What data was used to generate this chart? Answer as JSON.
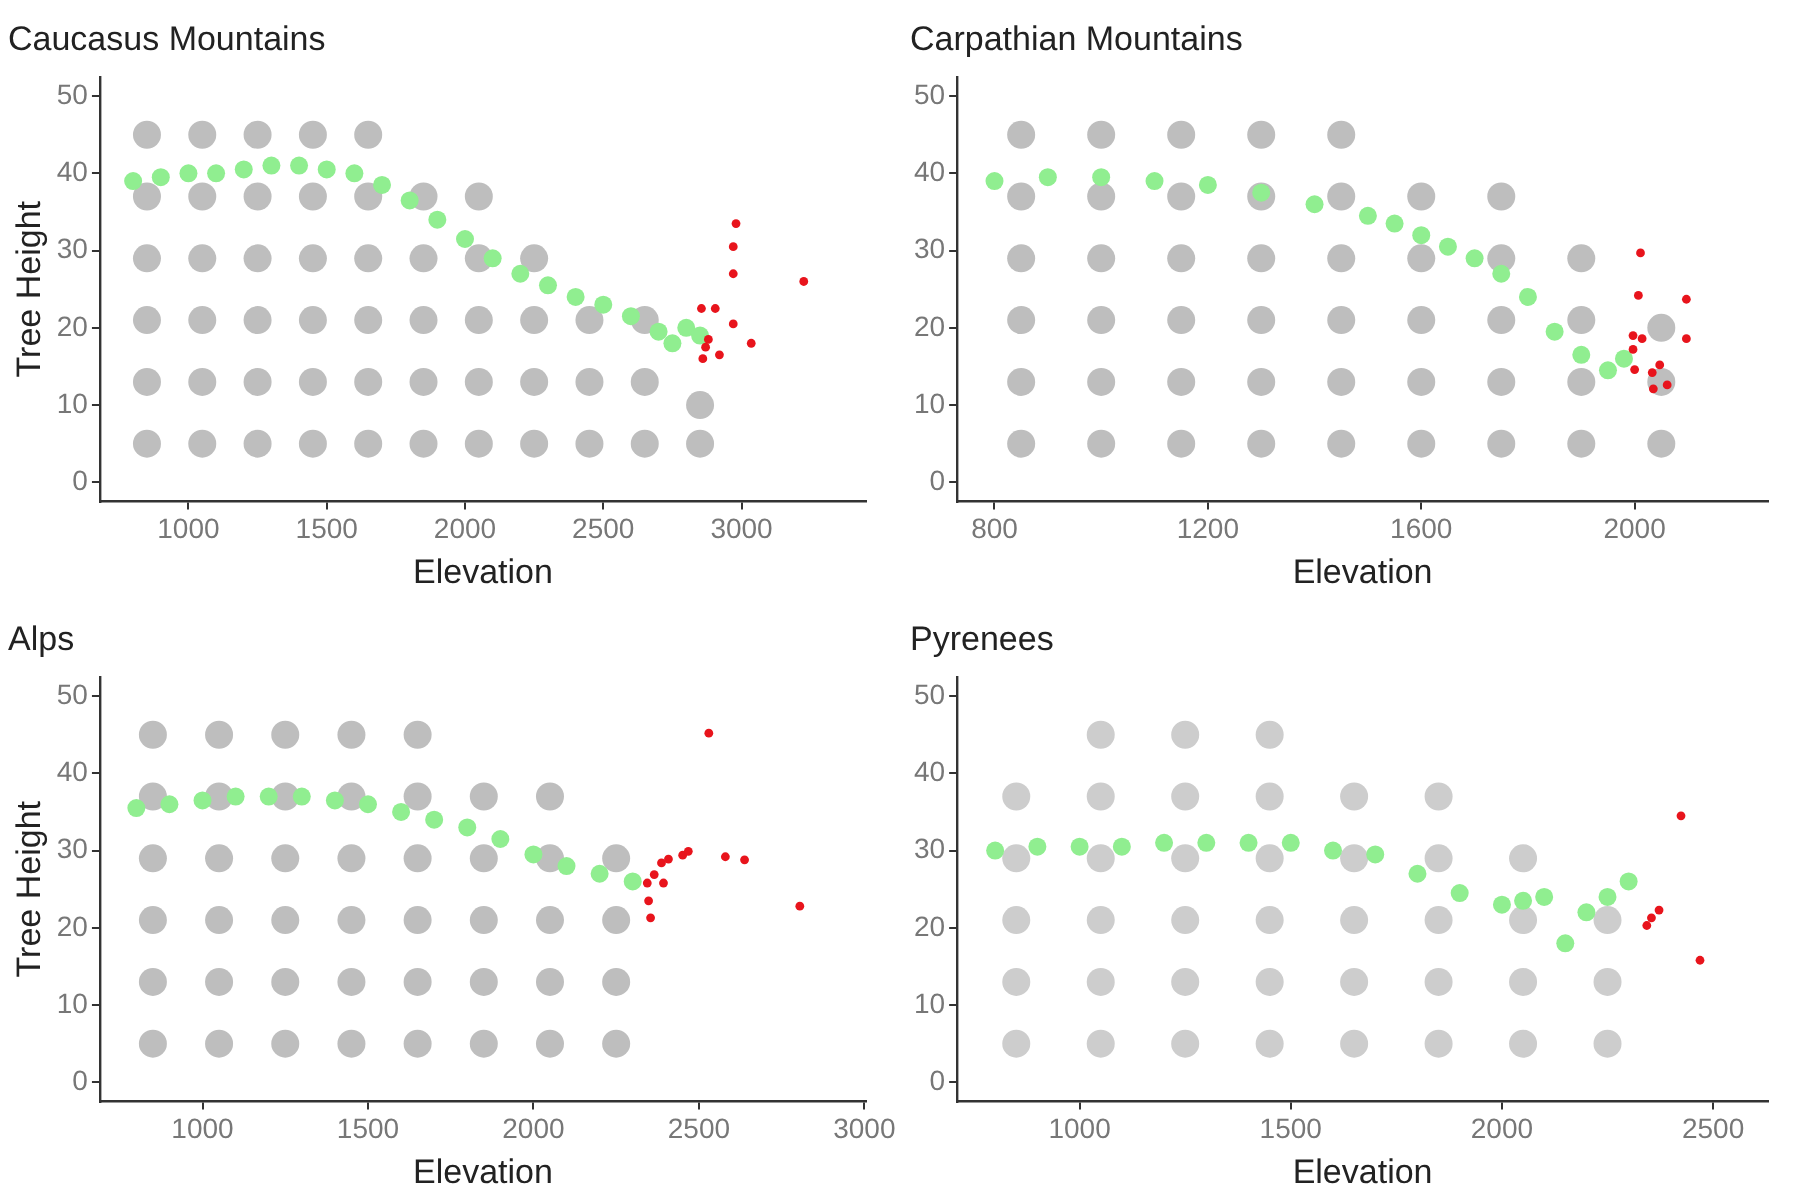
{
  "chart_data": [
    {
      "type": "scatter",
      "title": "Caucasus Mountains",
      "xlabel": "Elevation",
      "ylabel": "Tree Height",
      "xlim": [
        680,
        3450
      ],
      "xticks": [
        1000,
        1500,
        2000,
        2500,
        3000
      ],
      "ylim": [
        -2.5,
        52.5
      ],
      "yticks": [
        0,
        10,
        20,
        30,
        40,
        50
      ],
      "marker": "circle",
      "series": [
        {
          "color": "#bebebe",
          "x": [
            850,
            850,
            850,
            850,
            850,
            850,
            1050,
            1050,
            1050,
            1050,
            1050,
            1050,
            1250,
            1250,
            1250,
            1250,
            1250,
            1250,
            1450,
            1450,
            1450,
            1450,
            1450,
            1450,
            1650,
            1650,
            1650,
            1650,
            1650,
            1650,
            1850,
            1850,
            1850,
            1850,
            1850,
            2050,
            2050,
            2050,
            2050,
            2050,
            2250,
            2250,
            2250,
            2250,
            2450,
            2450,
            2450,
            2650,
            2650,
            2650,
            2850,
            2850
          ],
          "values": [
            5,
            13,
            21,
            29,
            37,
            45,
            5,
            13,
            21,
            29,
            37,
            45,
            5,
            13,
            21,
            29,
            37,
            45,
            5,
            13,
            21,
            29,
            37,
            45,
            5,
            13,
            21,
            29,
            37,
            45,
            5,
            13,
            21,
            29,
            37,
            5,
            13,
            21,
            29,
            37,
            5,
            13,
            21,
            29,
            5,
            13,
            21,
            5,
            13,
            21,
            5,
            10
          ]
        },
        {
          "color": "#90ee90",
          "x": [
            800,
            900,
            1000,
            1100,
            1200,
            1300,
            1400,
            1500,
            1600,
            1700,
            1800,
            1900,
            2000,
            2100,
            2200,
            2300,
            2400,
            2500,
            2600,
            2700,
            2750,
            2800,
            2850
          ],
          "values": [
            39,
            39.5,
            40,
            40,
            40.5,
            41,
            41,
            40.5,
            40,
            38.5,
            36.5,
            34,
            31.5,
            29,
            27,
            25.5,
            24,
            23,
            21.5,
            19.5,
            18,
            20,
            19
          ]
        },
        {
          "color": "#e8141c",
          "x": [
            2980,
            2970,
            2970,
            3225,
            2855,
            2905,
            2970,
            3035,
            2880,
            2870,
            2860,
            2920
          ],
          "values": [
            33.5,
            30.5,
            27,
            26,
            22.5,
            22.5,
            20.5,
            18,
            18.5,
            17.5,
            16,
            16.5
          ]
        }
      ]
    },
    {
      "type": "scatter",
      "title": "Carpathian Mountains",
      "xlabel": "Elevation",
      "xlim": [
        730,
        2250
      ],
      "xticks": [
        800,
        1200,
        1600,
        2000
      ],
      "ylim": [
        -2.5,
        52.5
      ],
      "yticks": [
        0,
        10,
        20,
        30,
        40,
        50
      ],
      "marker": "circle",
      "series": [
        {
          "color": "#bebebe",
          "x": [
            850,
            850,
            850,
            850,
            850,
            850,
            1000,
            1000,
            1000,
            1000,
            1000,
            1000,
            1150,
            1150,
            1150,
            1150,
            1150,
            1150,
            1300,
            1300,
            1300,
            1300,
            1300,
            1300,
            1450,
            1450,
            1450,
            1450,
            1450,
            1450,
            1600,
            1600,
            1600,
            1600,
            1600,
            1750,
            1750,
            1750,
            1750,
            1750,
            1900,
            1900,
            1900,
            1900,
            2050,
            2050,
            2050
          ],
          "values": [
            5,
            13,
            21,
            29,
            37,
            45,
            5,
            13,
            21,
            29,
            37,
            45,
            5,
            13,
            21,
            29,
            37,
            45,
            5,
            13,
            21,
            29,
            37,
            45,
            5,
            13,
            21,
            29,
            37,
            45,
            5,
            13,
            21,
            29,
            37,
            5,
            13,
            21,
            29,
            37,
            5,
            13,
            21,
            29,
            5,
            13,
            20
          ]
        },
        {
          "color": "#90ee90",
          "x": [
            800,
            900,
            1000,
            1100,
            1200,
            1300,
            1400,
            1500,
            1550,
            1600,
            1650,
            1700,
            1750,
            1800,
            1850,
            1900,
            1950,
            1980
          ],
          "values": [
            39,
            39.5,
            39.5,
            39,
            38.5,
            37.5,
            36,
            34.5,
            33.5,
            32,
            30.5,
            29,
            27,
            24,
            19.5,
            16.5,
            14.5,
            16
          ]
        },
        {
          "color": "#e8141c",
          "x": [
            2011,
            2007,
            2097,
            1997,
            2014,
            2097,
            1997,
            2000,
            2047,
            2033,
            2061,
            2035
          ],
          "values": [
            29.7,
            24.2,
            23.7,
            19,
            18.6,
            18.6,
            17.2,
            14.6,
            15.2,
            14.2,
            12.6,
            12.1
          ]
        }
      ]
    },
    {
      "type": "scatter",
      "title": "Alps",
      "xlabel": "Elevation",
      "ylabel": "Tree Height",
      "xlim": [
        690,
        3005
      ],
      "xticks": [
        1000,
        1500,
        2000,
        2500,
        3000
      ],
      "ylim": [
        -2.5,
        52.5
      ],
      "yticks": [
        0,
        10,
        20,
        30,
        40,
        50
      ],
      "marker": "circle",
      "series": [
        {
          "color": "#bebebe",
          "x": [
            850,
            850,
            850,
            850,
            850,
            850,
            1050,
            1050,
            1050,
            1050,
            1050,
            1050,
            1250,
            1250,
            1250,
            1250,
            1250,
            1250,
            1450,
            1450,
            1450,
            1450,
            1450,
            1450,
            1650,
            1650,
            1650,
            1650,
            1650,
            1650,
            1850,
            1850,
            1850,
            1850,
            1850,
            2050,
            2050,
            2050,
            2050,
            2050,
            2250,
            2250,
            2250,
            2250
          ],
          "values": [
            5,
            13,
            21,
            29,
            37,
            45,
            5,
            13,
            21,
            29,
            37,
            45,
            5,
            13,
            21,
            29,
            37,
            45,
            5,
            13,
            21,
            29,
            37,
            45,
            5,
            13,
            21,
            29,
            37,
            45,
            5,
            13,
            21,
            29,
            37,
            5,
            13,
            21,
            29,
            37,
            5,
            13,
            21,
            29
          ]
        },
        {
          "color": "#90ee90",
          "x": [
            800,
            900,
            1000,
            1100,
            1200,
            1300,
            1400,
            1500,
            1600,
            1700,
            1800,
            1900,
            2000,
            2100,
            2200,
            2300
          ],
          "values": [
            35.5,
            36,
            36.5,
            37,
            37,
            37,
            36.5,
            36,
            35,
            34,
            33,
            31.5,
            29.5,
            28,
            27,
            26
          ]
        },
        {
          "color": "#e8141c",
          "x": [
            2530,
            2580,
            2638,
            2805,
            2344,
            2348,
            2354,
            2365,
            2387,
            2408,
            2451,
            2468,
            2393
          ],
          "values": [
            45.2,
            29.2,
            28.8,
            22.8,
            25.8,
            23.5,
            21.3,
            26.9,
            28.4,
            28.9,
            29.4,
            29.9,
            25.8
          ]
        }
      ]
    },
    {
      "type": "scatter",
      "title": "Pyrenees",
      "xlabel": "Elevation",
      "xlim": [
        710,
        2630
      ],
      "xticks": [
        1000,
        1500,
        2000,
        2500
      ],
      "ylim": [
        -2.5,
        52.5
      ],
      "yticks": [
        0,
        10,
        20,
        30,
        40,
        50
      ],
      "marker": "circle",
      "series": [
        {
          "color": "#cdcdcd",
          "x": [
            850,
            850,
            850,
            850,
            850,
            1050,
            1050,
            1050,
            1050,
            1050,
            1050,
            1250,
            1250,
            1250,
            1250,
            1250,
            1250,
            1450,
            1450,
            1450,
            1450,
            1450,
            1450,
            1650,
            1650,
            1650,
            1650,
            1650,
            1850,
            1850,
            1850,
            1850,
            1850,
            2050,
            2050,
            2050,
            2050,
            2250,
            2250,
            2250
          ],
          "values": [
            5,
            13,
            21,
            29,
            37,
            5,
            13,
            21,
            29,
            37,
            45,
            5,
            13,
            21,
            29,
            37,
            45,
            5,
            13,
            21,
            29,
            37,
            45,
            5,
            13,
            21,
            29,
            37,
            5,
            13,
            21,
            29,
            37,
            5,
            13,
            21,
            29,
            5,
            13,
            21
          ]
        },
        {
          "color": "#90ee90",
          "x": [
            800,
            900,
            1000,
            1100,
            1200,
            1300,
            1400,
            1500,
            1600,
            1700,
            1800,
            1900,
            2000,
            2050,
            2100,
            2150,
            2200,
            2250,
            2300
          ],
          "values": [
            30,
            30.5,
            30.5,
            30.5,
            31,
            31,
            31,
            31,
            30,
            29.5,
            27,
            24.5,
            23,
            23.5,
            24,
            18,
            22,
            24,
            26
          ]
        },
        {
          "color": "#e8141c",
          "x": [
            2424,
            2469,
            2343,
            2354,
            2372
          ],
          "values": [
            34.5,
            15.8,
            20.3,
            21.3,
            22.3
          ]
        }
      ]
    }
  ]
}
